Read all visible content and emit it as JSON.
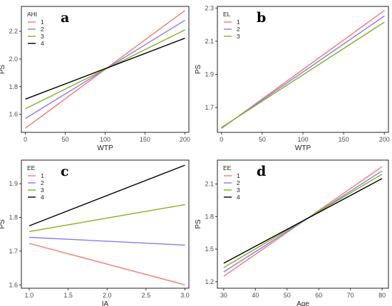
{
  "chart_data": [
    {
      "type": "line",
      "panel_label": "a",
      "xlabel": "WTP",
      "ylabel": "PS",
      "xlim": [
        -5,
        205
      ],
      "ylim": [
        1.47,
        2.38
      ],
      "xticks": [
        0,
        50,
        100,
        150,
        200
      ],
      "yticks": [
        1.6,
        1.8,
        2.0,
        2.2
      ],
      "ytick_labels": [
        "1.6",
        "1.8",
        "2.0",
        "2.2"
      ],
      "legend": {
        "title": "AHI",
        "position": "top-left"
      },
      "series": [
        {
          "name": "1",
          "color": "#F8766D",
          "x": [
            0,
            200
          ],
          "y": [
            1.5,
            2.35
          ]
        },
        {
          "name": "2",
          "color": "#8A7BFA",
          "x": [
            0,
            200
          ],
          "y": [
            1.57,
            2.28
          ]
        },
        {
          "name": "3",
          "color": "#7CB518",
          "x": [
            0,
            200
          ],
          "y": [
            1.64,
            2.21
          ]
        },
        {
          "name": "4",
          "color": "#000000",
          "x": [
            0,
            200
          ],
          "y": [
            1.71,
            2.15
          ]
        }
      ]
    },
    {
      "type": "line",
      "panel_label": "b",
      "xlabel": "WTP",
      "ylabel": "PS",
      "xlim": [
        -5,
        205
      ],
      "ylim": [
        1.55,
        2.31
      ],
      "xticks": [
        0,
        50,
        100,
        150,
        200
      ],
      "yticks": [
        1.7,
        1.9,
        2.1,
        2.3
      ],
      "ytick_labels": [
        "1.7",
        "1.9",
        "2.1",
        "2.3"
      ],
      "legend": {
        "title": "EL",
        "position": "top-left"
      },
      "series": [
        {
          "name": "1",
          "color": "#F8766D",
          "x": [
            0,
            200
          ],
          "y": [
            1.573,
            2.285
          ]
        },
        {
          "name": "2",
          "color": "#8A7BFA",
          "x": [
            0,
            200
          ],
          "y": [
            1.576,
            2.252
          ]
        },
        {
          "name": "3",
          "color": "#7CB518",
          "x": [
            0,
            200
          ],
          "y": [
            1.579,
            2.215
          ]
        }
      ]
    },
    {
      "type": "line",
      "panel_label": "c",
      "xlabel": "IA",
      "ylabel": "PS",
      "xlim": [
        0.9,
        3.05
      ],
      "ylim": [
        1.59,
        1.97
      ],
      "xticks": [
        1.0,
        1.5,
        2.0,
        2.5,
        3.0
      ],
      "xtick_labels": [
        "1.0",
        "1.5",
        "2.0",
        "2.5",
        "3.0"
      ],
      "yticks": [
        1.6,
        1.7,
        1.8,
        1.9
      ],
      "ytick_labels": [
        "1.6",
        "1.7",
        "1.8",
        "1.9"
      ],
      "legend": {
        "title": "EE",
        "position": "top-left"
      },
      "series": [
        {
          "name": "1",
          "color": "#F8766D",
          "x": [
            1.0,
            3.0
          ],
          "y": [
            1.723,
            1.6
          ]
        },
        {
          "name": "2",
          "color": "#8A7BFA",
          "x": [
            1.0,
            3.0
          ],
          "y": [
            1.741,
            1.718
          ]
        },
        {
          "name": "3",
          "color": "#7CB518",
          "x": [
            1.0,
            3.0
          ],
          "y": [
            1.758,
            1.838
          ]
        },
        {
          "name": "4",
          "color": "#000000",
          "x": [
            1.0,
            3.0
          ],
          "y": [
            1.775,
            1.955
          ]
        }
      ]
    },
    {
      "type": "line",
      "panel_label": "d",
      "xlabel": "Age",
      "ylabel": "PS",
      "xlim": [
        28,
        82
      ],
      "ylim": [
        1.14,
        2.32
      ],
      "xticks": [
        30,
        40,
        50,
        60,
        70,
        80
      ],
      "yticks": [
        1.2,
        1.5,
        1.8,
        2.1
      ],
      "ytick_labels": [
        "1.2",
        "1.5",
        "1.8",
        "2.1"
      ],
      "legend": {
        "title": "EE",
        "position": "top-left"
      },
      "series": [
        {
          "name": "1",
          "color": "#F8766D",
          "x": [
            30,
            80
          ],
          "y": [
            1.25,
            2.26
          ]
        },
        {
          "name": "2",
          "color": "#8A7BFA",
          "x": [
            30,
            80
          ],
          "y": [
            1.29,
            2.22
          ]
        },
        {
          "name": "3",
          "color": "#7CB518",
          "x": [
            30,
            80
          ],
          "y": [
            1.33,
            2.19
          ]
        },
        {
          "name": "4",
          "color": "#000000",
          "x": [
            30,
            80
          ],
          "y": [
            1.37,
            2.15
          ]
        }
      ]
    }
  ]
}
